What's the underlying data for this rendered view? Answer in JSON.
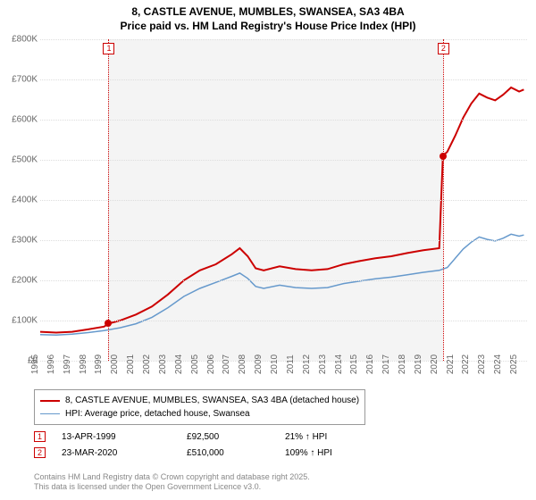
{
  "title_line1": "8, CASTLE AVENUE, MUMBLES, SWANSEA, SA3 4BA",
  "title_line2": "Price paid vs. HM Land Registry's House Price Index (HPI)",
  "chart": {
    "type": "line",
    "background_color": "#ffffff",
    "plot_band_color": "#f4f4f4",
    "plot_band_start_x": 1999.28,
    "plot_band_end_x": 2020.23,
    "grid_color": "#dddddd",
    "xlim": [
      1995,
      2025.5
    ],
    "ylim": [
      0,
      800000
    ],
    "ytick_step": 100000,
    "y_labels": [
      "£0",
      "£100K",
      "£200K",
      "£300K",
      "£400K",
      "£500K",
      "£600K",
      "£700K",
      "£800K"
    ],
    "x_labels": [
      "1995",
      "1996",
      "1997",
      "1998",
      "1999",
      "2000",
      "2001",
      "2002",
      "2003",
      "2004",
      "2005",
      "2006",
      "2007",
      "2008",
      "2009",
      "2010",
      "2011",
      "2012",
      "2013",
      "2014",
      "2015",
      "2016",
      "2017",
      "2018",
      "2019",
      "2020",
      "2021",
      "2022",
      "2023",
      "2024",
      "2025"
    ],
    "series": [
      {
        "name": "8, CASTLE AVENUE, MUMBLES, SWANSEA, SA3 4BA (detached house)",
        "color": "#cc0000",
        "line_width": 2,
        "data": [
          [
            1995,
            72000
          ],
          [
            1996,
            70000
          ],
          [
            1997,
            72000
          ],
          [
            1998,
            78000
          ],
          [
            1999,
            85000
          ],
          [
            1999.28,
            92500
          ],
          [
            2000,
            100000
          ],
          [
            2001,
            115000
          ],
          [
            2002,
            135000
          ],
          [
            2003,
            165000
          ],
          [
            2004,
            200000
          ],
          [
            2005,
            225000
          ],
          [
            2006,
            240000
          ],
          [
            2007,
            265000
          ],
          [
            2007.5,
            280000
          ],
          [
            2008,
            260000
          ],
          [
            2008.5,
            230000
          ],
          [
            2009,
            225000
          ],
          [
            2010,
            235000
          ],
          [
            2011,
            228000
          ],
          [
            2012,
            225000
          ],
          [
            2013,
            228000
          ],
          [
            2014,
            240000
          ],
          [
            2015,
            248000
          ],
          [
            2016,
            255000
          ],
          [
            2017,
            260000
          ],
          [
            2018,
            268000
          ],
          [
            2019,
            275000
          ],
          [
            2020,
            280000
          ],
          [
            2020.23,
            510000
          ],
          [
            2020.5,
            520000
          ],
          [
            2021,
            560000
          ],
          [
            2021.5,
            605000
          ],
          [
            2022,
            640000
          ],
          [
            2022.5,
            665000
          ],
          [
            2023,
            655000
          ],
          [
            2023.5,
            648000
          ],
          [
            2024,
            662000
          ],
          [
            2024.5,
            680000
          ],
          [
            2025,
            670000
          ],
          [
            2025.3,
            675000
          ]
        ]
      },
      {
        "name": "HPI: Average price, detached house, Swansea",
        "color": "#6699cc",
        "line_width": 1.5,
        "data": [
          [
            1995,
            65000
          ],
          [
            1996,
            64000
          ],
          [
            1997,
            66000
          ],
          [
            1998,
            70000
          ],
          [
            1999,
            75000
          ],
          [
            2000,
            82000
          ],
          [
            2001,
            92000
          ],
          [
            2002,
            108000
          ],
          [
            2003,
            132000
          ],
          [
            2004,
            160000
          ],
          [
            2005,
            180000
          ],
          [
            2006,
            195000
          ],
          [
            2007,
            210000
          ],
          [
            2007.5,
            218000
          ],
          [
            2008,
            205000
          ],
          [
            2008.5,
            185000
          ],
          [
            2009,
            180000
          ],
          [
            2010,
            188000
          ],
          [
            2011,
            182000
          ],
          [
            2012,
            180000
          ],
          [
            2013,
            182000
          ],
          [
            2014,
            192000
          ],
          [
            2015,
            198000
          ],
          [
            2016,
            204000
          ],
          [
            2017,
            208000
          ],
          [
            2018,
            214000
          ],
          [
            2019,
            220000
          ],
          [
            2020,
            225000
          ],
          [
            2020.5,
            232000
          ],
          [
            2021,
            255000
          ],
          [
            2021.5,
            278000
          ],
          [
            2022,
            295000
          ],
          [
            2022.5,
            308000
          ],
          [
            2023,
            302000
          ],
          [
            2023.5,
            298000
          ],
          [
            2024,
            305000
          ],
          [
            2024.5,
            315000
          ],
          [
            2025,
            310000
          ],
          [
            2025.3,
            313000
          ]
        ]
      }
    ],
    "markers": [
      {
        "id": "1",
        "x": 1999.28,
        "y": 92500,
        "color": "#cc0000"
      },
      {
        "id": "2",
        "x": 2020.23,
        "y": 510000,
        "color": "#cc0000"
      }
    ]
  },
  "legend": {
    "items": [
      {
        "color": "#cc0000",
        "width": 2,
        "label": "8, CASTLE AVENUE, MUMBLES, SWANSEA, SA3 4BA (detached house)"
      },
      {
        "color": "#6699cc",
        "width": 1.5,
        "label": "HPI: Average price, detached house, Swansea"
      }
    ]
  },
  "sales": [
    {
      "marker": "1",
      "date": "13-APR-1999",
      "price": "£92,500",
      "delta": "21% ↑ HPI",
      "color": "#cc0000"
    },
    {
      "marker": "2",
      "date": "23-MAR-2020",
      "price": "£510,000",
      "delta": "109% ↑ HPI",
      "color": "#cc0000"
    }
  ],
  "attribution_line1": "Contains HM Land Registry data © Crown copyright and database right 2025.",
  "attribution_line2": "This data is licensed under the Open Government Licence v3.0."
}
